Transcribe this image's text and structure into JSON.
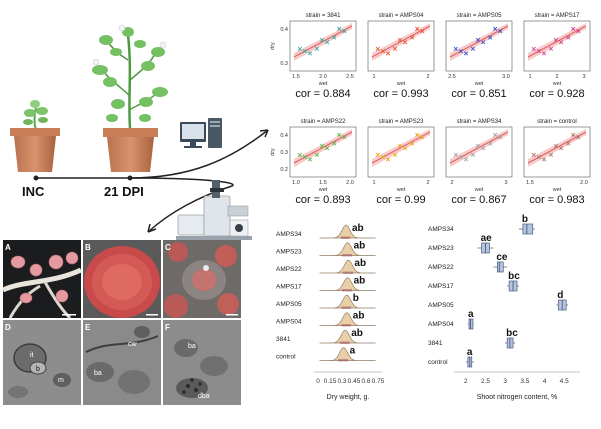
{
  "workflow": {
    "inc_label": "INC",
    "dpi_label": "21 DPI"
  },
  "scatter_panels": {
    "y_axis_label": "dry",
    "x_axis_label": "wet",
    "panels": [
      {
        "strain": "strain = 3841",
        "cor": "cor = 0.884",
        "xticks": [
          "1.5",
          "2.0",
          "2.5"
        ],
        "yticks": [
          "0.4",
          "0.3"
        ]
      },
      {
        "strain": "strain = AMPS04",
        "cor": "cor = 0.993",
        "xticks": [
          "1",
          "2"
        ],
        "yticks": []
      },
      {
        "strain": "strain = AMPS05",
        "cor": "cor = 0.851",
        "xticks": [
          "2.5",
          "3.0"
        ],
        "yticks": []
      },
      {
        "strain": "strain = AMPS17",
        "cor": "cor = 0.928",
        "xticks": [
          "1",
          "2",
          "3"
        ],
        "yticks": []
      },
      {
        "strain": "strain = AMPS22",
        "cor": "cor = 0.893",
        "xticks": [
          "1.0",
          "1.5",
          "2.0"
        ],
        "yticks": [
          "0.4",
          "0.3",
          "0.2"
        ]
      },
      {
        "strain": "strain = AMPS23",
        "cor": "cor = 0.99",
        "xticks": [
          "1",
          "2"
        ],
        "yticks": []
      },
      {
        "strain": "strain = AMPS34",
        "cor": "cor = 0.867",
        "xticks": [
          "2",
          "3"
        ],
        "yticks": []
      },
      {
        "strain": "strain = control",
        "cor": "cor = 0.983",
        "xticks": [
          "1.5",
          "2.0"
        ],
        "yticks": []
      }
    ]
  },
  "micrographs": {
    "panel_letters": [
      "A",
      "B",
      "C",
      "D",
      "E",
      "F"
    ],
    "annotations": [
      "it",
      "b",
      "m",
      "cw",
      "ba",
      "ba",
      "dba"
    ]
  },
  "chart_data": [
    {
      "type": "ridgeline",
      "categories": [
        "AMPS34",
        "AMPS23",
        "AMPS22",
        "AMPS17",
        "AMPS05",
        "AMPS04",
        "3841",
        "control"
      ],
      "group_letters": [
        "ab",
        "ab",
        "ab",
        "ab",
        "b",
        "ab",
        "ab",
        "a"
      ],
      "xlabel": "Dry weight, g.",
      "xticks": [
        "0",
        "0.15",
        "0.3",
        "0.45",
        "0.6",
        "0.75"
      ],
      "xlim": [
        0,
        0.75
      ],
      "density_peak": [
        0.35,
        0.37,
        0.38,
        0.37,
        0.36,
        0.36,
        0.34,
        0.32
      ]
    },
    {
      "type": "box",
      "categories": [
        "AMPS34",
        "AMPS23",
        "AMPS22",
        "AMPS17",
        "AMPS05",
        "AMPS04",
        "3841",
        "control"
      ],
      "group_letters": [
        "b",
        "ae",
        "ce",
        "bc",
        "d",
        "a",
        "bc",
        "a"
      ],
      "xlabel": "Shoot nitrogen content, %",
      "xticks": [
        "2",
        "2.5",
        "3",
        "3.5",
        "4",
        "4.5"
      ],
      "xlim": [
        1.8,
        4.8
      ],
      "boxes": [
        {
          "min": 3.35,
          "q1": 3.45,
          "median": 3.55,
          "q3": 3.7,
          "max": 3.75
        },
        {
          "min": 2.3,
          "q1": 2.4,
          "median": 2.5,
          "q3": 2.6,
          "max": 2.7
        },
        {
          "min": 2.7,
          "q1": 2.8,
          "median": 2.85,
          "q3": 2.95,
          "max": 3.05
        },
        {
          "min": 3.05,
          "q1": 3.1,
          "median": 3.2,
          "q3": 3.3,
          "max": 3.35
        },
        {
          "min": 4.3,
          "q1": 4.35,
          "median": 4.45,
          "q3": 4.55,
          "max": 4.6
        },
        {
          "min": 2.05,
          "q1": 2.08,
          "median": 2.12,
          "q3": 2.18,
          "max": 2.2
        },
        {
          "min": 3.0,
          "q1": 3.05,
          "median": 3.12,
          "q3": 3.2,
          "max": 3.25
        },
        {
          "min": 2.0,
          "q1": 2.05,
          "median": 2.1,
          "q3": 2.15,
          "max": 2.2
        }
      ]
    }
  ]
}
